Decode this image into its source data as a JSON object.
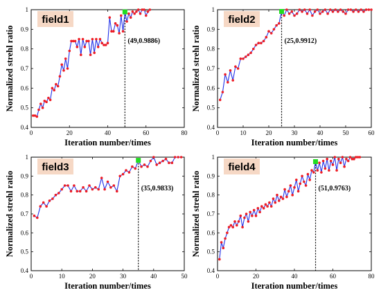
{
  "chart_data": [
    {
      "type": "line",
      "label": "field1",
      "xlabel": "Iteration number/times",
      "ylabel": "Normalized strehl ratio",
      "xlim": [
        0,
        80
      ],
      "ylim": [
        0.4,
        1
      ],
      "xticks": [
        0,
        20,
        40,
        60,
        80
      ],
      "yticks": [
        0.4,
        0.5,
        0.6,
        0.7,
        0.8,
        0.9,
        1
      ],
      "ytick_labels": [
        "0.4",
        "0.5",
        "0.6",
        "0.7",
        "0.8",
        "0.9",
        "1"
      ],
      "marker": {
        "x": 49,
        "y": 0.9886
      },
      "annotation": "(49,0.9886)",
      "series": [
        {
          "x": [
            1,
            2,
            3,
            4,
            5,
            6,
            7,
            8,
            9,
            10,
            11,
            12,
            13,
            14,
            15,
            16,
            17,
            18,
            19,
            20,
            21,
            22,
            23,
            24,
            25,
            26,
            27,
            28,
            29,
            30,
            31,
            32,
            33,
            34,
            35,
            36,
            37,
            38,
            39,
            40,
            41,
            42,
            43,
            44,
            45,
            46,
            47,
            48,
            49,
            50,
            51,
            52,
            53,
            54,
            55,
            56,
            57,
            58,
            59,
            60,
            61,
            62
          ],
          "y": [
            0.46,
            0.46,
            0.455,
            0.49,
            0.52,
            0.5,
            0.535,
            0.53,
            0.55,
            0.54,
            0.6,
            0.59,
            0.62,
            0.61,
            0.66,
            0.72,
            0.69,
            0.75,
            0.7,
            0.79,
            0.84,
            0.84,
            0.84,
            0.81,
            0.85,
            0.77,
            0.85,
            0.81,
            0.84,
            0.84,
            0.77,
            0.85,
            0.78,
            0.85,
            0.81,
            0.85,
            0.83,
            0.82,
            0.82,
            0.83,
            0.96,
            0.89,
            0.89,
            0.93,
            0.92,
            0.88,
            0.97,
            0.89,
            0.9886,
            0.94,
            0.98,
            0.96,
            0.99,
            0.98,
            0.99,
            1.0,
            0.98,
            1.0,
            1.0,
            0.97,
            0.99,
            1.0
          ]
        }
      ]
    },
    {
      "type": "line",
      "label": "field2",
      "xlabel": "Iteration number/times",
      "ylabel": "Normalized strehl ratio",
      "xlim": [
        0,
        60
      ],
      "ylim": [
        0.4,
        1
      ],
      "xticks": [
        0,
        10,
        20,
        30,
        40,
        50,
        60
      ],
      "yticks": [
        0.4,
        0.5,
        0.6,
        0.7,
        0.8,
        0.9,
        1
      ],
      "ytick_labels": [
        "0.4",
        "0.5",
        "0.6",
        "0.7",
        "0.8",
        "0.9",
        "1"
      ],
      "marker": {
        "x": 25,
        "y": 0.9912
      },
      "annotation": "(25,0.9912)",
      "series": [
        {
          "x": [
            1,
            2,
            3,
            4,
            5,
            6,
            7,
            8,
            9,
            10,
            11,
            12,
            13,
            14,
            15,
            16,
            17,
            18,
            19,
            20,
            21,
            22,
            23,
            24,
            25,
            26,
            27,
            28,
            29,
            30,
            31,
            32,
            33,
            34,
            35,
            36,
            37,
            38,
            39,
            40,
            41,
            42,
            43,
            44,
            45,
            46,
            47,
            48,
            49,
            50,
            51,
            52,
            53,
            54,
            55,
            56,
            57,
            58,
            59,
            60
          ],
          "y": [
            0.54,
            0.58,
            0.67,
            0.63,
            0.69,
            0.64,
            0.71,
            0.7,
            0.75,
            0.75,
            0.76,
            0.77,
            0.78,
            0.8,
            0.82,
            0.83,
            0.83,
            0.84,
            0.86,
            0.89,
            0.88,
            0.9,
            0.92,
            0.93,
            0.9912,
            0.97,
            1.0,
            0.98,
            0.99,
            0.97,
            0.98,
            1.0,
            0.99,
            1.0,
            0.98,
            1.0,
            0.97,
            0.99,
            1.0,
            0.98,
            0.99,
            1.0,
            0.98,
            1.0,
            0.99,
            1.0,
            0.99,
            1.0,
            0.99,
            0.98,
            1.0,
            1.0,
            0.99,
            1.0,
            0.99,
            1.0,
            0.99,
            1.0,
            1.0,
            1.0
          ]
        }
      ]
    },
    {
      "type": "line",
      "label": "field3",
      "xlabel": "Iteration number/times",
      "ylabel": "Normalized strehl ratio",
      "xlim": [
        0,
        50
      ],
      "ylim": [
        0.4,
        1
      ],
      "xticks": [
        0,
        10,
        20,
        30,
        40,
        50
      ],
      "yticks": [
        0.4,
        0.5,
        0.6,
        0.7,
        0.8,
        0.9,
        1
      ],
      "ytick_labels": [
        "0.4",
        "0.5",
        "0.6",
        "0.7",
        "0.8",
        "0.9",
        "1"
      ],
      "marker": {
        "x": 35,
        "y": 0.9833
      },
      "annotation": "(35,0.9833)",
      "series": [
        {
          "x": [
            1,
            2,
            3,
            4,
            5,
            6,
            7,
            8,
            9,
            10,
            11,
            12,
            13,
            14,
            15,
            16,
            17,
            18,
            19,
            20,
            21,
            22,
            23,
            24,
            25,
            26,
            27,
            28,
            29,
            30,
            31,
            32,
            33,
            34,
            35,
            36,
            37,
            38,
            39,
            40,
            41,
            42,
            43,
            44,
            45,
            46,
            47,
            48,
            49
          ],
          "y": [
            0.69,
            0.68,
            0.74,
            0.76,
            0.74,
            0.77,
            0.78,
            0.8,
            0.81,
            0.83,
            0.85,
            0.85,
            0.82,
            0.85,
            0.82,
            0.82,
            0.84,
            0.82,
            0.85,
            0.83,
            0.84,
            0.83,
            0.89,
            0.83,
            0.87,
            0.84,
            0.85,
            0.82,
            0.9,
            0.91,
            0.93,
            0.92,
            0.95,
            0.94,
            0.9833,
            0.95,
            0.96,
            0.95,
            0.98,
            1.0,
            0.96,
            0.97,
            0.98,
            0.99,
            0.97,
            0.97,
            1.0,
            1.0,
            1.0
          ]
        }
      ]
    },
    {
      "type": "line",
      "label": "field4",
      "xlabel": "Iteration number/times",
      "ylabel": "Normalized strehl ratio",
      "xlim": [
        0,
        80
      ],
      "ylim": [
        0.4,
        1
      ],
      "xticks": [
        0,
        20,
        40,
        60,
        80
      ],
      "yticks": [
        0.4,
        0.5,
        0.6,
        0.7,
        0.8,
        0.9,
        1
      ],
      "ytick_labels": [
        "0.4",
        "0.5",
        "0.6",
        "0.7",
        "0.8",
        "0.9",
        "1"
      ],
      "marker": {
        "x": 51,
        "y": 0.9763
      },
      "annotation": "(51,0.9763)",
      "series": [
        {
          "x": [
            1,
            2,
            3,
            4,
            5,
            6,
            7,
            8,
            9,
            10,
            11,
            12,
            13,
            14,
            15,
            16,
            17,
            18,
            19,
            20,
            21,
            22,
            23,
            24,
            25,
            26,
            27,
            28,
            29,
            30,
            31,
            32,
            33,
            34,
            35,
            36,
            37,
            38,
            39,
            40,
            41,
            42,
            43,
            44,
            45,
            46,
            47,
            48,
            49,
            50,
            51,
            52,
            53,
            54,
            55,
            56,
            57,
            58,
            59,
            60,
            61,
            62,
            63,
            64,
            65,
            66,
            67,
            68,
            69,
            70,
            71,
            72,
            73,
            74
          ],
          "y": [
            0.46,
            0.55,
            0.52,
            0.57,
            0.6,
            0.63,
            0.64,
            0.63,
            0.66,
            0.64,
            0.66,
            0.69,
            0.63,
            0.68,
            0.7,
            0.66,
            0.71,
            0.69,
            0.72,
            0.69,
            0.73,
            0.71,
            0.74,
            0.73,
            0.75,
            0.74,
            0.76,
            0.74,
            0.78,
            0.76,
            0.8,
            0.77,
            0.79,
            0.78,
            0.83,
            0.79,
            0.82,
            0.85,
            0.8,
            0.84,
            0.88,
            0.82,
            0.86,
            0.9,
            0.87,
            0.85,
            0.91,
            0.88,
            0.93,
            0.92,
            0.9763,
            0.93,
            0.97,
            0.92,
            0.98,
            0.94,
            0.99,
            0.93,
            0.98,
            0.96,
            1.0,
            0.93,
            0.99,
            0.97,
            1.0,
            0.95,
            0.99,
            0.98,
            1.0,
            0.99,
            0.99,
            1.0,
            1.0,
            1.0
          ]
        }
      ]
    }
  ]
}
